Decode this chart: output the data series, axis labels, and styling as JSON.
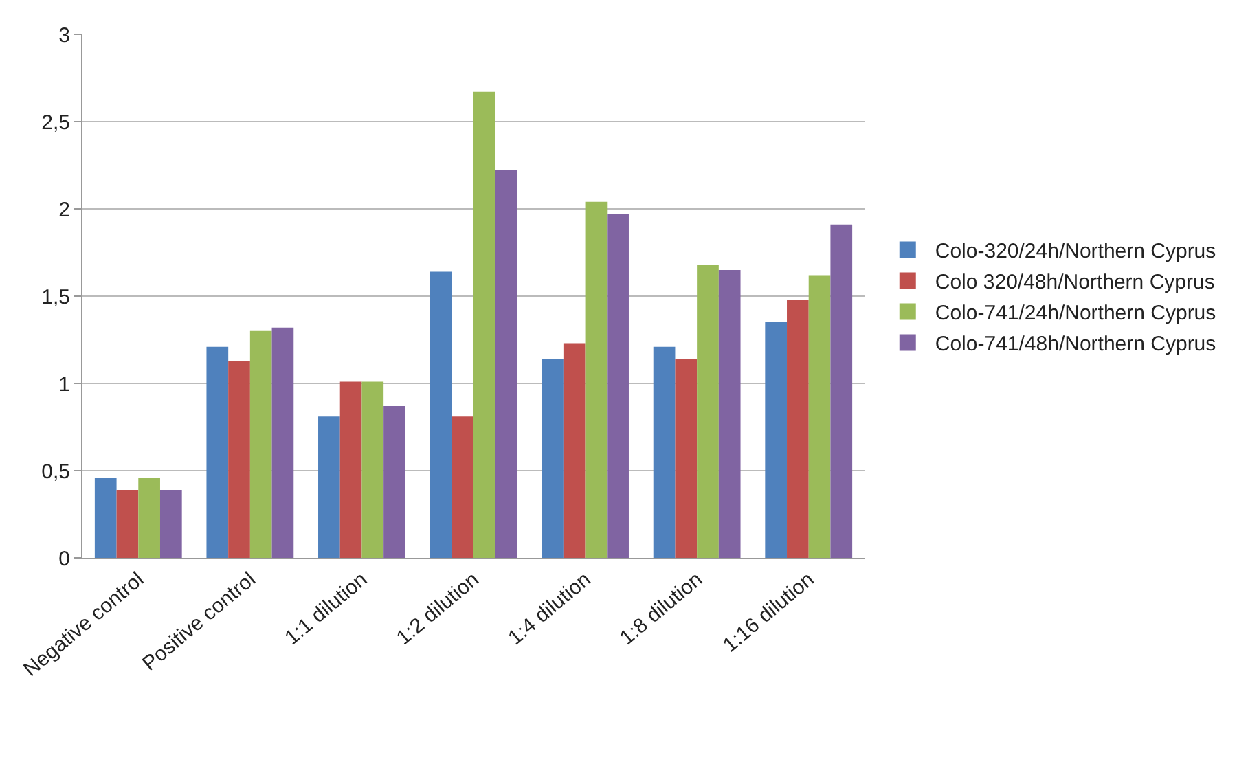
{
  "chart_data": {
    "type": "bar",
    "categories": [
      "Negative control",
      "Positive control",
      "1:1 dilution",
      "1:2 dilution",
      "1:4 dilution",
      "1:8 dilution",
      "1:16 dilution"
    ],
    "series": [
      {
        "name": "Colo-320/24h/Northern Cyprus",
        "color": "#4f81bd",
        "values": [
          0.46,
          1.21,
          0.81,
          1.64,
          1.14,
          1.21,
          1.35
        ]
      },
      {
        "name": "Colo 320/48h/Northern Cyprus",
        "color": "#c0504d",
        "values": [
          0.39,
          1.13,
          1.01,
          0.81,
          1.23,
          1.14,
          1.48
        ]
      },
      {
        "name": "Colo-741/24h/Northern Cyprus",
        "color": "#9bbb59",
        "values": [
          0.46,
          1.3,
          1.01,
          2.67,
          2.04,
          1.68,
          1.62
        ]
      },
      {
        "name": "Colo-741/48h/Northern Cyprus",
        "color": "#8064a2",
        "values": [
          0.39,
          1.32,
          0.87,
          2.22,
          1.97,
          1.65,
          1.91
        ]
      }
    ],
    "ylim": [
      0,
      3
    ],
    "yticks": [
      0,
      {
        "value": 0.5,
        "label": "0,5"
      },
      1,
      {
        "value": 1.5,
        "label": "1,5"
      },
      2,
      {
        "value": 2.5,
        "label": "2,5"
      },
      3
    ],
    "grid": "y",
    "legend": "right"
  }
}
